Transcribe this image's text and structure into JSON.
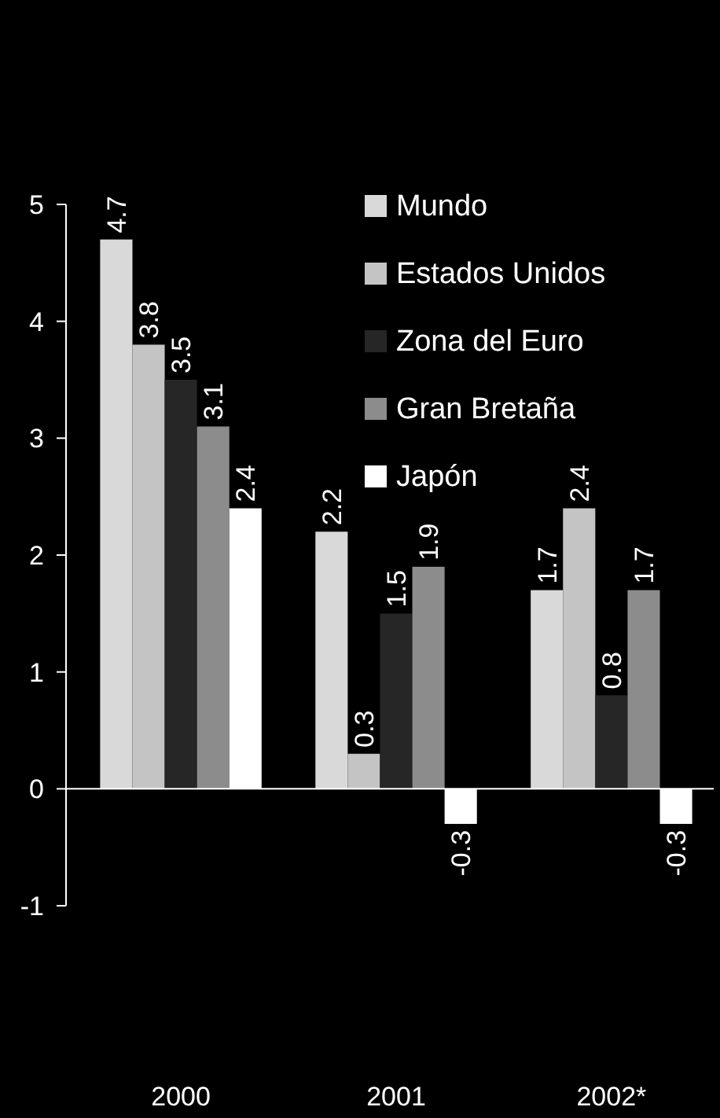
{
  "chart_data": {
    "type": "bar",
    "categories": [
      "2000",
      "2001",
      "2002*"
    ],
    "series": [
      {
        "name": "Mundo",
        "color": "#d9d9d9",
        "values": [
          4.7,
          2.2,
          1.7
        ]
      },
      {
        "name": "Estados Unidos",
        "color": "#c4c4c4",
        "values": [
          3.8,
          0.3,
          2.4
        ]
      },
      {
        "name": "Zona del Euro",
        "color": "#262626",
        "values": [
          3.5,
          1.5,
          0.8
        ]
      },
      {
        "name": "Gran Bretaña",
        "color": "#8c8c8c",
        "values": [
          3.1,
          1.9,
          1.7
        ]
      },
      {
        "name": "Japón",
        "color": "#ffffff",
        "values": [
          2.4,
          -0.3,
          -0.3
        ]
      }
    ],
    "ylim": [
      -1,
      5
    ],
    "yticks": [
      -1,
      0,
      1,
      2,
      3,
      4,
      5
    ],
    "data_labels": true,
    "legend": "top right"
  }
}
